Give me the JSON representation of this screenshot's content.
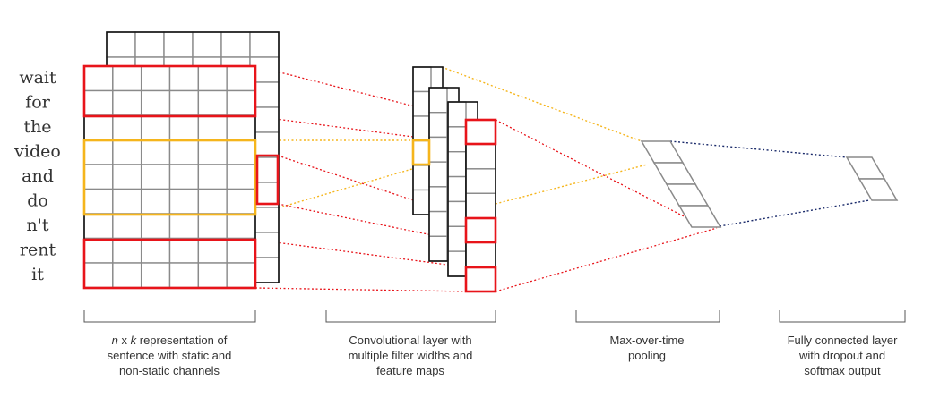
{
  "sentence_words": [
    "wait",
    "for",
    "the",
    "video",
    "and",
    "do",
    "n't",
    "rent",
    "it"
  ],
  "captions": [
    {
      "id": "input",
      "lines": [
        [
          {
            "t": "n",
            "italic": true
          },
          {
            "t": " x "
          },
          {
            "t": "k",
            "italic": true
          },
          {
            "t": " representation of"
          }
        ],
        [
          {
            "t": "sentence with static and"
          }
        ],
        [
          {
            "t": "non-static channels"
          }
        ]
      ]
    },
    {
      "id": "conv",
      "lines": [
        [
          {
            "t": "Convolutional layer with"
          }
        ],
        [
          {
            "t": "multiple filter widths and"
          }
        ],
        [
          {
            "t": "feature maps"
          }
        ]
      ]
    },
    {
      "id": "pool",
      "lines": [
        [
          {
            "t": "Max-over-time"
          }
        ],
        [
          {
            "t": "pooling"
          }
        ]
      ]
    },
    {
      "id": "fc",
      "lines": [
        [
          {
            "t": "Fully connected layer"
          }
        ],
        [
          {
            "t": "with dropout and"
          }
        ],
        [
          {
            "t": "softmax output"
          }
        ]
      ]
    }
  ],
  "colors": {
    "filter_red": "#e8141a",
    "filter_orange": "#f5b51c",
    "fc_connection": "#1a2a6a",
    "grid": "#8a8a8a",
    "text": "#333333"
  }
}
